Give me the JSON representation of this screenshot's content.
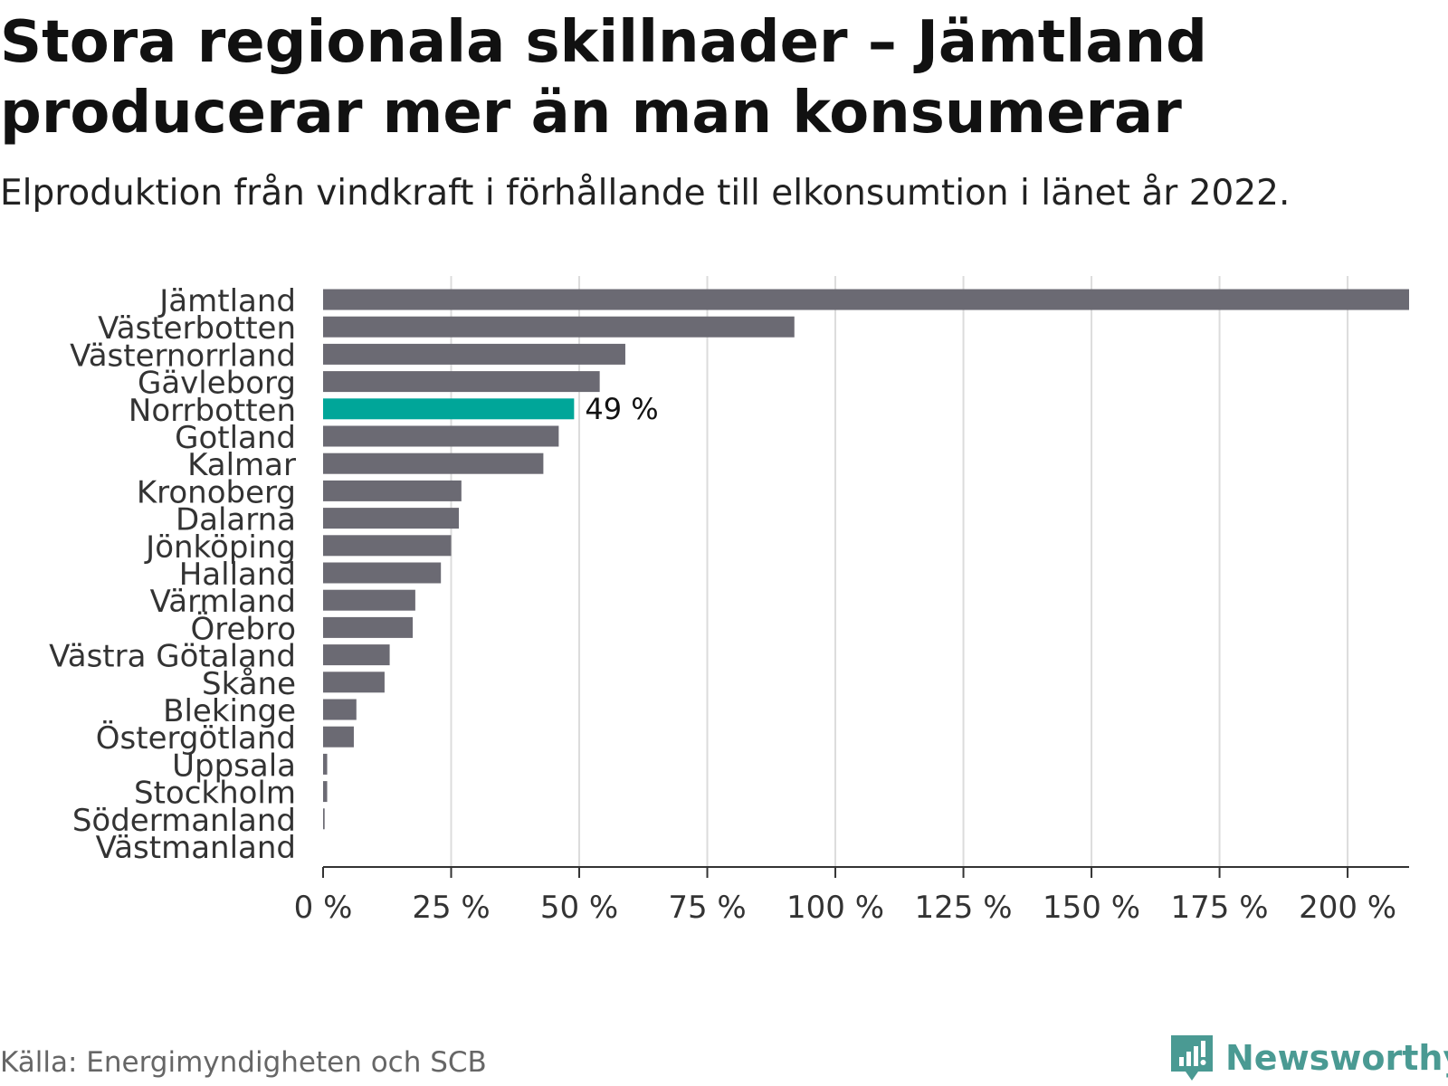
{
  "header": {
    "title": "Stora regionala skillnader – Jämtland producerar mer än man konsumerar",
    "subtitle": "Elproduktion från vindkraft i förhållande till elkonsumtion i länet år 2022."
  },
  "footer": {
    "source": "Källa: Energimyndigheten och SCB",
    "brand": "Newsworthy",
    "brand_icon": "newsworthy-logo-icon"
  },
  "colors": {
    "bar": "#6b6a73",
    "highlight": "#00a699",
    "grid": "#dcdcdc",
    "axis": "#333333",
    "text": "#333333",
    "brand": "#4a9a93"
  },
  "chart_data": {
    "type": "bar",
    "orientation": "horizontal",
    "categories": [
      "Jämtland",
      "Västerbotten",
      "Västernorrland",
      "Gävleborg",
      "Norrbotten",
      "Gotland",
      "Kalmar",
      "Kronoberg",
      "Dalarna",
      "Jönköping",
      "Halland",
      "Värmland",
      "Örebro",
      "Västra Götaland",
      "Skåne",
      "Blekinge",
      "Östergötland",
      "Uppsala",
      "Stockholm",
      "Södermanland",
      "Västmanland"
    ],
    "values": [
      212,
      92,
      59,
      54,
      49,
      46,
      43,
      27,
      26.5,
      25,
      23,
      18,
      17.5,
      13,
      12,
      6.5,
      6,
      0.8,
      0.8,
      0.3,
      0
    ],
    "highlight_index": 4,
    "annotation": {
      "index": 4,
      "label": "49 %"
    },
    "xlim": [
      0,
      212
    ],
    "xticks": [
      0,
      25,
      50,
      75,
      100,
      125,
      150,
      175,
      200
    ],
    "xtick_labels": [
      "0 %",
      "25 %",
      "50 %",
      "75 %",
      "100 %",
      "125 %",
      "150 %",
      "175 %",
      "200 %"
    ],
    "grid": "vertical"
  }
}
